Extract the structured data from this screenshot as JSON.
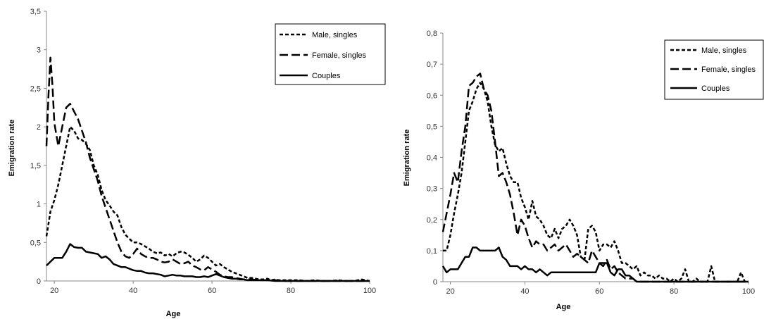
{
  "chart_data": [
    {
      "type": "line",
      "xlabel": "Age",
      "ylabel": "Emigration rate",
      "xlim": [
        18,
        100
      ],
      "ylim": [
        0,
        3.5
      ],
      "xticks": [
        "20",
        "40",
        "60",
        "80",
        "100"
      ],
      "yticks": [
        "0",
        "0,5",
        "1",
        "1,5",
        "2",
        "2,5",
        "3",
        "3,5"
      ],
      "legend_position": "top-right",
      "series": [
        {
          "name": "Male, singles",
          "style": "short-dash",
          "x": [
            18,
            19,
            20,
            21,
            22,
            23,
            24,
            25,
            26,
            27,
            28,
            29,
            30,
            31,
            32,
            33,
            34,
            35,
            36,
            37,
            38,
            39,
            40,
            41,
            42,
            43,
            44,
            45,
            46,
            47,
            48,
            49,
            50,
            51,
            52,
            53,
            54,
            55,
            56,
            57,
            58,
            59,
            60,
            61,
            62,
            63,
            64,
            65,
            66,
            67,
            68,
            69,
            70,
            71,
            72,
            73,
            74,
            75,
            76,
            77,
            78,
            79,
            80,
            82,
            84,
            86,
            88,
            90,
            92,
            94,
            96,
            98,
            100
          ],
          "y": [
            0.58,
            0.9,
            1.05,
            1.25,
            1.5,
            1.75,
            2.0,
            1.95,
            1.85,
            1.83,
            1.78,
            1.7,
            1.5,
            1.38,
            1.18,
            1.05,
            0.98,
            0.9,
            0.85,
            0.7,
            0.6,
            0.55,
            0.5,
            0.5,
            0.48,
            0.45,
            0.42,
            0.38,
            0.36,
            0.37,
            0.33,
            0.35,
            0.32,
            0.36,
            0.38,
            0.37,
            0.34,
            0.3,
            0.25,
            0.28,
            0.33,
            0.3,
            0.25,
            0.2,
            0.22,
            0.18,
            0.15,
            0.12,
            0.1,
            0.08,
            0.06,
            0.04,
            0.04,
            0.03,
            0.02,
            0.02,
            0.03,
            0.01,
            0.02,
            0.01,
            0.01,
            0.01,
            0.01,
            0.01,
            0.0,
            0.01,
            0.0,
            0.0,
            0.01,
            0.0,
            0.0,
            0.02,
            0.0
          ]
        },
        {
          "name": "Female, singles",
          "style": "long-dash",
          "x": [
            18,
            18.5,
            19,
            19.5,
            20,
            21,
            22,
            23,
            24,
            25,
            26,
            27,
            28,
            29,
            30,
            31,
            32,
            33,
            34,
            35,
            36,
            37,
            38,
            39,
            40,
            41,
            42,
            43,
            44,
            45,
            46,
            47,
            48,
            49,
            50,
            51,
            52,
            53,
            54,
            55,
            56,
            57,
            58,
            59,
            60,
            61,
            62,
            63,
            64,
            65,
            66,
            67,
            68,
            69,
            70,
            72,
            74,
            76,
            78,
            80,
            85,
            90,
            95,
            100
          ],
          "y": [
            1.75,
            2.4,
            2.9,
            2.55,
            2.05,
            1.75,
            2.0,
            2.25,
            2.3,
            2.2,
            2.1,
            1.95,
            1.8,
            1.6,
            1.45,
            1.3,
            1.1,
            0.95,
            0.8,
            0.65,
            0.5,
            0.38,
            0.32,
            0.3,
            0.35,
            0.42,
            0.35,
            0.32,
            0.3,
            0.3,
            0.28,
            0.25,
            0.24,
            0.25,
            0.28,
            0.25,
            0.22,
            0.23,
            0.25,
            0.2,
            0.18,
            0.15,
            0.14,
            0.18,
            0.15,
            0.12,
            0.08,
            0.06,
            0.05,
            0.05,
            0.04,
            0.03,
            0.02,
            0.02,
            0.02,
            0.01,
            0.01,
            0.01,
            0.0,
            0.0,
            0.0,
            0.0,
            0.0,
            0.0
          ]
        },
        {
          "name": "Couples",
          "style": "solid",
          "x": [
            18,
            19,
            20,
            21,
            22,
            23,
            24,
            25,
            26,
            27,
            28,
            29,
            30,
            31,
            32,
            33,
            34,
            35,
            36,
            37,
            38,
            39,
            40,
            41,
            42,
            43,
            44,
            45,
            46,
            47,
            48,
            49,
            50,
            51,
            52,
            53,
            54,
            55,
            56,
            57,
            58,
            59,
            60,
            61,
            62,
            63,
            64,
            65,
            66,
            67,
            68,
            69,
            70,
            72,
            74,
            76,
            78,
            80,
            85,
            90,
            95,
            100
          ],
          "y": [
            0.2,
            0.25,
            0.3,
            0.3,
            0.3,
            0.38,
            0.48,
            0.44,
            0.43,
            0.43,
            0.38,
            0.37,
            0.36,
            0.35,
            0.3,
            0.32,
            0.28,
            0.22,
            0.2,
            0.18,
            0.18,
            0.16,
            0.14,
            0.13,
            0.13,
            0.11,
            0.1,
            0.1,
            0.09,
            0.08,
            0.06,
            0.07,
            0.08,
            0.07,
            0.07,
            0.06,
            0.06,
            0.06,
            0.05,
            0.05,
            0.06,
            0.05,
            0.07,
            0.09,
            0.07,
            0.05,
            0.04,
            0.03,
            0.03,
            0.02,
            0.02,
            0.01,
            0.01,
            0.01,
            0.01,
            0.0,
            0.0,
            0.0,
            0.0,
            0.0,
            0.0,
            0.0
          ]
        }
      ]
    },
    {
      "type": "line",
      "xlabel": "Age",
      "ylabel": "Emigration rate",
      "xlim": [
        18,
        100
      ],
      "ylim": [
        0,
        0.8
      ],
      "xticks": [
        "20",
        "40",
        "60",
        "80",
        "100"
      ],
      "yticks": [
        "0",
        "0,1",
        "0,2",
        "0,3",
        "0,4",
        "0,5",
        "0,6",
        "0,7",
        "0,8"
      ],
      "legend_position": "top-right",
      "series": [
        {
          "name": "Male, singles",
          "style": "short-dash",
          "x": [
            18,
            19,
            20,
            21,
            22,
            23,
            24,
            25,
            26,
            27,
            28,
            29,
            30,
            31,
            32,
            33,
            34,
            35,
            36,
            37,
            38,
            39,
            40,
            41,
            42,
            43,
            44,
            45,
            46,
            47,
            48,
            49,
            50,
            51,
            52,
            53,
            54,
            55,
            56,
            57,
            58,
            59,
            60,
            61,
            62,
            63,
            64,
            65,
            66,
            67,
            68,
            69,
            70,
            71,
            72,
            73,
            74,
            75,
            76,
            77,
            78,
            79,
            80,
            81,
            82,
            83,
            84,
            85,
            86,
            87,
            88,
            89,
            90,
            91,
            92,
            93,
            94,
            95,
            96,
            97,
            98,
            99,
            100
          ],
          "y": [
            0.1,
            0.1,
            0.15,
            0.22,
            0.28,
            0.35,
            0.45,
            0.55,
            0.58,
            0.62,
            0.64,
            0.62,
            0.58,
            0.5,
            0.44,
            0.42,
            0.43,
            0.38,
            0.34,
            0.32,
            0.32,
            0.27,
            0.24,
            0.2,
            0.26,
            0.21,
            0.2,
            0.18,
            0.15,
            0.14,
            0.17,
            0.14,
            0.17,
            0.18,
            0.2,
            0.18,
            0.15,
            0.08,
            0.07,
            0.17,
            0.18,
            0.16,
            0.1,
            0.12,
            0.12,
            0.11,
            0.13,
            0.1,
            0.06,
            0.06,
            0.05,
            0.04,
            0.05,
            0.02,
            0.03,
            0.02,
            0.02,
            0.01,
            0.02,
            0.01,
            0.01,
            0.0,
            0.01,
            0.0,
            0.01,
            0.04,
            0.0,
            0.0,
            0.01,
            0.0,
            0.0,
            0.0,
            0.05,
            0.0,
            0.0,
            0.0,
            0.0,
            0.0,
            0.0,
            0.0,
            0.03,
            0.0,
            0.0
          ]
        },
        {
          "name": "Female, singles",
          "style": "long-dash",
          "x": [
            18,
            19,
            20,
            21,
            22,
            23,
            24,
            25,
            26,
            27,
            28,
            29,
            30,
            31,
            32,
            33,
            34,
            35,
            36,
            37,
            38,
            39,
            40,
            41,
            42,
            43,
            44,
            45,
            46,
            47,
            48,
            49,
            50,
            51,
            52,
            53,
            54,
            55,
            56,
            57,
            58,
            59,
            60,
            61,
            62,
            63,
            64,
            65,
            66,
            67,
            68,
            69,
            70,
            72,
            74,
            76,
            78,
            80,
            85,
            90,
            95,
            100
          ],
          "y": [
            0.16,
            0.22,
            0.28,
            0.35,
            0.32,
            0.42,
            0.5,
            0.63,
            0.64,
            0.66,
            0.67,
            0.62,
            0.6,
            0.55,
            0.45,
            0.34,
            0.35,
            0.32,
            0.28,
            0.22,
            0.15,
            0.2,
            0.18,
            0.14,
            0.11,
            0.13,
            0.12,
            0.12,
            0.1,
            0.11,
            0.12,
            0.1,
            0.11,
            0.12,
            0.1,
            0.08,
            0.09,
            0.08,
            0.07,
            0.06,
            0.1,
            0.08,
            0.06,
            0.05,
            0.07,
            0.04,
            0.05,
            0.03,
            0.02,
            0.01,
            0.01,
            0.01,
            0.0,
            0.0,
            0.0,
            0.0,
            0.0,
            0.0,
            0.0,
            0.0,
            0.0,
            0.0
          ]
        },
        {
          "name": "Couples",
          "style": "solid",
          "x": [
            18,
            19,
            20,
            21,
            22,
            23,
            24,
            25,
            26,
            27,
            28,
            29,
            30,
            31,
            32,
            33,
            34,
            35,
            36,
            37,
            38,
            39,
            40,
            41,
            42,
            43,
            44,
            45,
            46,
            47,
            48,
            49,
            50,
            51,
            52,
            53,
            54,
            55,
            56,
            57,
            58,
            59,
            60,
            61,
            62,
            63,
            64,
            65,
            66,
            67,
            68,
            69,
            70,
            72,
            74,
            76,
            78,
            80,
            85,
            90,
            95,
            100
          ],
          "y": [
            0.05,
            0.03,
            0.04,
            0.04,
            0.04,
            0.06,
            0.08,
            0.08,
            0.11,
            0.11,
            0.1,
            0.1,
            0.1,
            0.1,
            0.1,
            0.11,
            0.08,
            0.07,
            0.05,
            0.05,
            0.05,
            0.04,
            0.05,
            0.04,
            0.04,
            0.03,
            0.04,
            0.03,
            0.02,
            0.03,
            0.03,
            0.03,
            0.03,
            0.03,
            0.03,
            0.03,
            0.03,
            0.03,
            0.03,
            0.03,
            0.03,
            0.03,
            0.06,
            0.06,
            0.06,
            0.03,
            0.02,
            0.04,
            0.04,
            0.02,
            0.02,
            0.01,
            0.0,
            0.0,
            0.0,
            0.0,
            0.0,
            0.0,
            0.0,
            0.0,
            0.0,
            0.0
          ]
        }
      ]
    }
  ]
}
